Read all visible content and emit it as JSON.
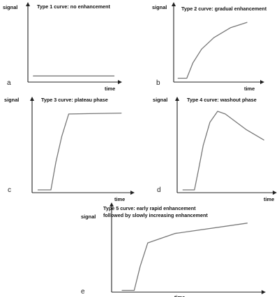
{
  "chart_data": [
    {
      "type": "line",
      "panel_label": "a",
      "title": "Type 1 curve: no enhancement",
      "xlabel": "time",
      "ylabel": "signal",
      "xlim": [
        0,
        10
      ],
      "ylim": [
        0,
        10
      ],
      "grid": false,
      "series": [
        {
          "x": [
            0.6,
            9.5
          ],
          "values": [
            0.8,
            0.8
          ]
        }
      ]
    },
    {
      "type": "line",
      "panel_label": "b",
      "title": "Type 2 curve: gradual enhancement",
      "xlabel": "time",
      "ylabel": "signal",
      "xlim": [
        0,
        10
      ],
      "ylim": [
        0,
        10
      ],
      "grid": false,
      "series": [
        {
          "x": [
            0.5,
            1.5,
            2.2,
            3.2,
            4.6,
            6.5,
            8.4
          ],
          "values": [
            0.5,
            0.5,
            2.5,
            4.3,
            5.8,
            7.1,
            7.8
          ]
        }
      ]
    },
    {
      "type": "line",
      "panel_label": "c",
      "title": "Type 3 curve: plateau phase",
      "xlabel": "time",
      "ylabel": "signal",
      "xlim": [
        0,
        10
      ],
      "ylim": [
        0,
        10
      ],
      "grid": false,
      "series": [
        {
          "x": [
            0.6,
            1.9,
            2.4,
            3.0,
            3.7,
            9.0
          ],
          "values": [
            0.3,
            0.3,
            3.3,
            6.1,
            8.5,
            8.6
          ]
        }
      ]
    },
    {
      "type": "line",
      "panel_label": "d",
      "title": "Type 4 curve: washout phase",
      "xlabel": "time",
      "ylabel": "signal",
      "xlim": [
        0,
        10
      ],
      "ylim": [
        0,
        10
      ],
      "grid": false,
      "series": [
        {
          "x": [
            0.6,
            1.8,
            2.2,
            2.7,
            3.4,
            4.2,
            5.0,
            7.2,
            9.0
          ],
          "values": [
            0.3,
            0.3,
            2.4,
            5.1,
            7.6,
            8.8,
            8.5,
            6.8,
            5.7
          ]
        }
      ]
    },
    {
      "type": "line",
      "panel_label": "e",
      "title": "Type 5 curve: early rapid enhancement",
      "subtitle": "followed by slowly increasing enhancement",
      "xlabel": "time",
      "ylabel": "signal",
      "xlim": [
        0,
        10
      ],
      "ylim": [
        0,
        10
      ],
      "grid": false,
      "series": [
        {
          "x": [
            0.7,
            1.5,
            1.9,
            2.4,
            4.2,
            9.0
          ],
          "values": [
            0.2,
            0.2,
            3.0,
            5.7,
            6.8,
            8.0
          ]
        }
      ]
    }
  ]
}
